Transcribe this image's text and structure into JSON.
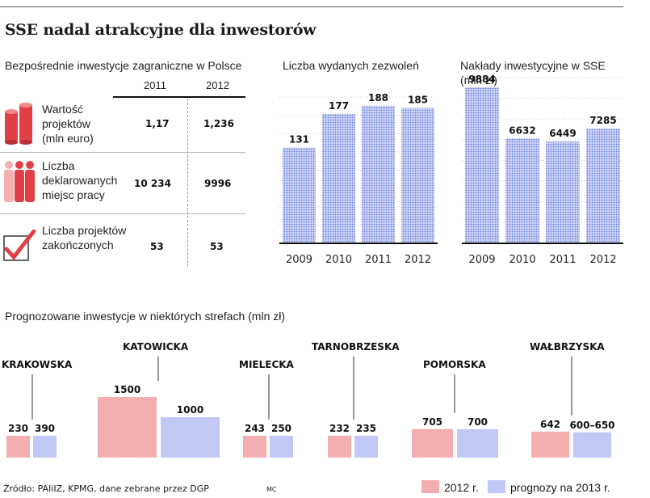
{
  "title": "SSE nadal atrakcyjne dla inwestorów",
  "fdi_table": {
    "heading": "Bezpośrednie inwestycje zagraniczne w Polsce",
    "col_headers": [
      "2011",
      "2012"
    ],
    "rows": [
      {
        "label": "Wartość projektów (mln euro)",
        "v2011": "1,17",
        "v2012": "1,236",
        "icon": "coins-stack-icon"
      },
      {
        "label": "Liczba deklarowanych miejsc pracy",
        "v2011": "10 234",
        "v2012": "9996",
        "icon": "people-icon"
      },
      {
        "label": "Liczba projektów zakończonych",
        "v2011": "53",
        "v2012": "53",
        "icon": "checkmark-box-icon"
      }
    ],
    "accent_color": "#e04045"
  },
  "chart_data": [
    {
      "type": "bar",
      "title": "Liczba wydanych zezwoleń",
      "categories": [
        "2009",
        "2010",
        "2011",
        "2012"
      ],
      "values": [
        131,
        177,
        188,
        185
      ],
      "labels": [
        "131",
        "177",
        "188",
        "185"
      ],
      "ylim": [
        0,
        200
      ],
      "color": "#8a9de8"
    },
    {
      "type": "bar",
      "title": "Nakłady inwestycyjne w SSE (mln zł)",
      "categories": [
        "2009",
        "2010",
        "2011",
        "2012"
      ],
      "values": [
        9884,
        6632,
        6449,
        7285
      ],
      "labels": [
        "9884",
        "6632",
        "6449",
        "7285"
      ],
      "ylim": [
        0,
        10500
      ],
      "color": "#8a9de8"
    },
    {
      "type": "bar",
      "title": "Prognozowane inwestycje w niektórych strefach (mln zł)",
      "categories": [
        "KRAKOWSKA",
        "KATOWICKA",
        "MIELECKA",
        "TARNOBRZESKA",
        "POMORSKA",
        "WAŁBRZYSKA"
      ],
      "series": [
        {
          "name": "2012 r.",
          "values": [
            230,
            1500,
            243,
            232,
            705,
            642
          ],
          "labels": [
            "230",
            "1500",
            "243",
            "232",
            "705",
            "642"
          ],
          "color": "#f2aeb0"
        },
        {
          "name": "prognozy na 2013 r.",
          "values": [
            390,
            1000,
            250,
            235,
            700,
            625
          ],
          "labels": [
            "390",
            "1000",
            "250",
            "235",
            "700",
            "600–650"
          ],
          "color": "#c2c8f6"
        }
      ],
      "ylim": [
        0,
        1500
      ]
    }
  ],
  "source": "Źródło: PAIiIZ, KPMG, dane zebrane przez DGP",
  "author": "MC"
}
